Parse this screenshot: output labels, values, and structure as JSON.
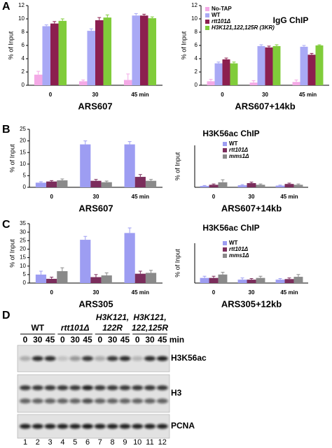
{
  "panels": [
    "A",
    "B",
    "C",
    "D"
  ],
  "chart_data": [
    {
      "type": "bar",
      "xlabel": "ARS607",
      "ylabel": "% of Input",
      "categories": [
        "0",
        "30",
        "45 min"
      ],
      "series": [
        {
          "color": "#f4a9e6",
          "values": [
            1.6,
            0.6,
            0.8
          ],
          "errors": [
            0.5,
            0.2,
            0.9
          ]
        },
        {
          "color": "#a9a9f5",
          "values": [
            8.9,
            8.2,
            10.5
          ],
          "errors": [
            0.2,
            0.3,
            0.3
          ]
        },
        {
          "color": "#8c1f4f",
          "values": [
            9.3,
            9.8,
            10.5
          ],
          "errors": [
            0.3,
            0.4,
            0.2
          ]
        },
        {
          "color": "#80cc3a",
          "values": [
            9.7,
            10.2,
            10.1
          ],
          "errors": [
            0.3,
            0.4,
            0.2
          ]
        }
      ],
      "ylim": [
        0,
        12
      ],
      "yticks": [
        0,
        2,
        4,
        6,
        8,
        10,
        12
      ]
    },
    {
      "type": "bar",
      "title": "IgG ChIP",
      "xlabel": "ARS607+14kb",
      "ylabel": "% of Input",
      "categories": [
        "0",
        "30",
        "45 min"
      ],
      "series": [
        {
          "name": "No-TAP",
          "color": "#f4a9e6",
          "values": [
            0.6,
            0.4,
            0.5
          ],
          "errors": [
            0.3,
            0.3,
            0.3
          ]
        },
        {
          "name": "WT",
          "color": "#a9a9f5",
          "values": [
            3.3,
            5.9,
            5.8
          ],
          "errors": [
            0.2,
            0.2,
            0.2
          ]
        },
        {
          "name": "rtt101Δ",
          "italic": true,
          "color": "#8c1f4f",
          "values": [
            3.9,
            5.7,
            4.6
          ],
          "errors": [
            0.2,
            0.2,
            0.2
          ]
        },
        {
          "name": "H3K121,122,125R (3KR)",
          "italic": true,
          "color": "#80cc3a",
          "values": [
            3.3,
            5.9,
            6.0
          ],
          "errors": [
            0.2,
            0.2,
            0.1
          ]
        }
      ],
      "ylim": [
        0,
        12
      ],
      "yticks": [
        0,
        2,
        4,
        6,
        8,
        10,
        12
      ],
      "legend": "upper left"
    },
    {
      "type": "bar",
      "xlabel": "ARS607",
      "ylabel": "% of Input",
      "categories": [
        "0",
        "30",
        "45 min"
      ],
      "series": [
        {
          "color": "#9d9df2",
          "values": [
            2,
            18.5,
            18.5
          ],
          "errors": [
            0.4,
            1.5,
            1.2
          ]
        },
        {
          "color": "#7b2d5c",
          "values": [
            2.5,
            2.8,
            4.5
          ],
          "errors": [
            0.4,
            0.6,
            1
          ]
        },
        {
          "color": "#8a8a8a",
          "values": [
            3,
            2.2,
            2.8
          ],
          "errors": [
            0.6,
            0.5,
            0.6
          ]
        }
      ],
      "ylim": [
        0,
        25
      ],
      "yticks": [
        0,
        5,
        10,
        15,
        20,
        25
      ]
    },
    {
      "type": "bar",
      "title": "H3K56ac ChIP",
      "xlabel": "ARS607+14kb",
      "ylabel": "% of Input",
      "categories": [
        "0",
        "30",
        "45 min"
      ],
      "series": [
        {
          "name": "WT",
          "color": "#9d9df2",
          "values": [
            0.8,
            1.2,
            1
          ],
          "errors": [
            0.3,
            0.4,
            0.3
          ]
        },
        {
          "name": "rtt101Δ",
          "italic": true,
          "color": "#7b2d5c",
          "values": [
            1.5,
            2.5,
            2
          ],
          "errors": [
            0.5,
            0.6,
            0.5
          ]
        },
        {
          "name": "mms1Δ",
          "italic": true,
          "color": "#8a8a8a",
          "values": [
            3,
            1.5,
            1.5
          ],
          "errors": [
            1.5,
            0.5,
            0.5
          ]
        }
      ],
      "ylim": [
        0,
        25
      ],
      "legend": "upper center"
    },
    {
      "type": "bar",
      "xlabel": "ARS305",
      "ylabel": "% of Input",
      "categories": [
        "0",
        "30",
        "45 min"
      ],
      "series": [
        {
          "color": "#9d9df2",
          "values": [
            5,
            25.5,
            29.5
          ],
          "errors": [
            2,
            2,
            3
          ]
        },
        {
          "color": "#7b2d5c",
          "values": [
            2.5,
            3.5,
            5.5
          ],
          "errors": [
            1,
            1.5,
            1.5
          ]
        },
        {
          "color": "#8a8a8a",
          "values": [
            7,
            4.5,
            6
          ],
          "errors": [
            2,
            1.5,
            1.5
          ]
        }
      ],
      "ylim": [
        0,
        35
      ],
      "yticks": [
        0,
        5,
        10,
        15,
        20,
        25,
        30,
        35
      ]
    },
    {
      "type": "bar",
      "title": "H3K56ac ChIP",
      "xlabel": "ARS305+12kb",
      "ylabel": "% of Input",
      "categories": [
        "0",
        "30",
        "45 min"
      ],
      "series": [
        {
          "name": "WT",
          "color": "#9d9df2",
          "values": [
            4.5,
            3,
            3
          ],
          "errors": [
            1.5,
            1.5,
            1
          ]
        },
        {
          "name": "rtt101Δ",
          "italic": true,
          "color": "#7b2d5c",
          "values": [
            4.5,
            3,
            3.5
          ],
          "errors": [
            1.5,
            1,
            1
          ]
        },
        {
          "name": "mms1Δ",
          "italic": true,
          "color": "#8a8a8a",
          "values": [
            7.5,
            4.5,
            5.5
          ],
          "errors": [
            2,
            1.5,
            2
          ]
        }
      ],
      "ylim": [
        0,
        35
      ],
      "legend": "upper center"
    }
  ],
  "blot": {
    "groups": [
      [
        "WT"
      ],
      [
        "rtt101Δ"
      ],
      [
        "H3K121,",
        "122R"
      ],
      [
        "H3K121,",
        "122,125R"
      ]
    ],
    "times": [
      "0",
      "30",
      "45",
      "0",
      "30",
      "45",
      "0",
      "30",
      "45",
      "0",
      "30",
      "45"
    ],
    "time_unit": "min",
    "rows": [
      "H3K56ac",
      "H3",
      "PCNA"
    ],
    "lanes": [
      1,
      2,
      3,
      4,
      5,
      6,
      7,
      8,
      9,
      10,
      11,
      12
    ]
  }
}
